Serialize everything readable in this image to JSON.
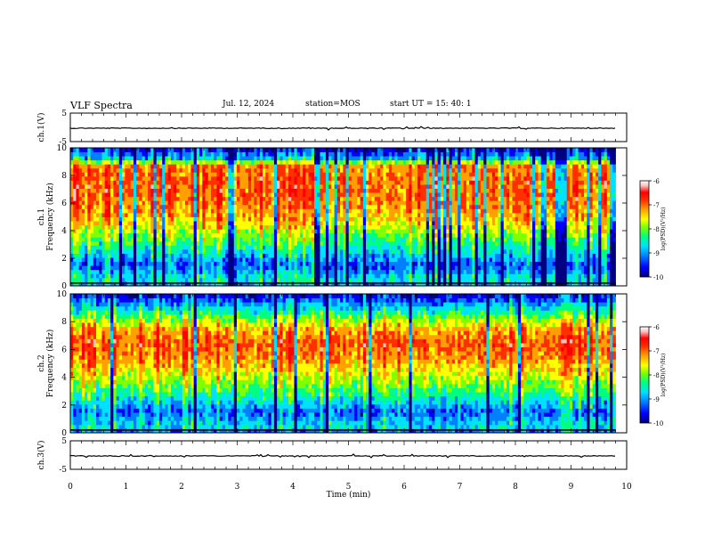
{
  "header": {
    "title": "VLF Spectra",
    "date": "Jul. 12, 2024",
    "station": "station=MOS",
    "start": "start UT =   15: 40: 1"
  },
  "colorbar": {
    "ticks": [
      "-6",
      "-7",
      "-8",
      "-9",
      "-10"
    ],
    "label": "log(PSD)(V²/Hz)",
    "colors": [
      "#000080",
      "#0000ff",
      "#0080ff",
      "#00e0ff",
      "#00ff80",
      "#80ff00",
      "#ffff00",
      "#ffa000",
      "#ff3000",
      "#ff0000",
      "#ffc0c0",
      "#ffffff"
    ]
  },
  "chart_data": [
    {
      "type": "line",
      "panel": "ch.1 waveform",
      "ylabel": "ch.1(V)",
      "ylim": [
        -5,
        5
      ],
      "yticks": [
        "5",
        "-5"
      ],
      "xlim": [
        0,
        10
      ],
      "level": -0.3
    },
    {
      "type": "heatmap",
      "panel": "ch.1 spectrogram",
      "ylabel": "ch.1\nFrequency (kHz)",
      "xlim": [
        0,
        10
      ],
      "ylim": [
        0,
        10
      ],
      "yticks": [
        "0",
        "2",
        "4",
        "6",
        "8",
        "10"
      ],
      "zlim": [
        -10,
        -6
      ],
      "data_end_min": 9.8,
      "band_profile": [
        {
          "f": 0.0,
          "z": -9.2
        },
        {
          "f": 0.5,
          "z": -8.6
        },
        {
          "f": 1.5,
          "z": -9.3
        },
        {
          "f": 2.5,
          "z": -8.7
        },
        {
          "f": 4.0,
          "z": -7.9
        },
        {
          "f": 5.0,
          "z": -7.4
        },
        {
          "f": 6.5,
          "z": -7.1
        },
        {
          "f": 8.0,
          "z": -7.1
        },
        {
          "f": 8.8,
          "z": -7.3
        },
        {
          "f": 9.2,
          "z": -8.8
        },
        {
          "f": 10.0,
          "z": -9.6
        }
      ]
    },
    {
      "type": "heatmap",
      "panel": "ch.2 spectrogram",
      "ylabel": "ch.2\nFrequency (kHz)",
      "xlim": [
        0,
        10
      ],
      "ylim": [
        0,
        10
      ],
      "yticks": [
        "0",
        "2",
        "4",
        "6",
        "8",
        "10"
      ],
      "zlim": [
        -10,
        -6
      ],
      "data_end_min": 9.8,
      "band_profile": [
        {
          "f": 0.0,
          "z": -9.3
        },
        {
          "f": 0.5,
          "z": -8.7
        },
        {
          "f": 1.5,
          "z": -9.2
        },
        {
          "f": 3.0,
          "z": -8.3
        },
        {
          "f": 4.5,
          "z": -7.6
        },
        {
          "f": 5.5,
          "z": -7.2
        },
        {
          "f": 6.5,
          "z": -7.0
        },
        {
          "f": 7.5,
          "z": -7.4
        },
        {
          "f": 8.5,
          "z": -8.3
        },
        {
          "f": 9.5,
          "z": -9.2
        },
        {
          "f": 10.0,
          "z": -9.6
        }
      ]
    },
    {
      "type": "line",
      "panel": "ch.3 waveform",
      "ylabel": "ch.3(V)",
      "ylim": [
        -5,
        5
      ],
      "yticks": [
        "5",
        "-5"
      ],
      "xlim": [
        0,
        10
      ],
      "level": -0.3
    }
  ],
  "xaxis": {
    "label": "Time (min)",
    "ticks": [
      "0",
      "1",
      "2",
      "3",
      "4",
      "5",
      "6",
      "7",
      "8",
      "9",
      "10"
    ]
  }
}
